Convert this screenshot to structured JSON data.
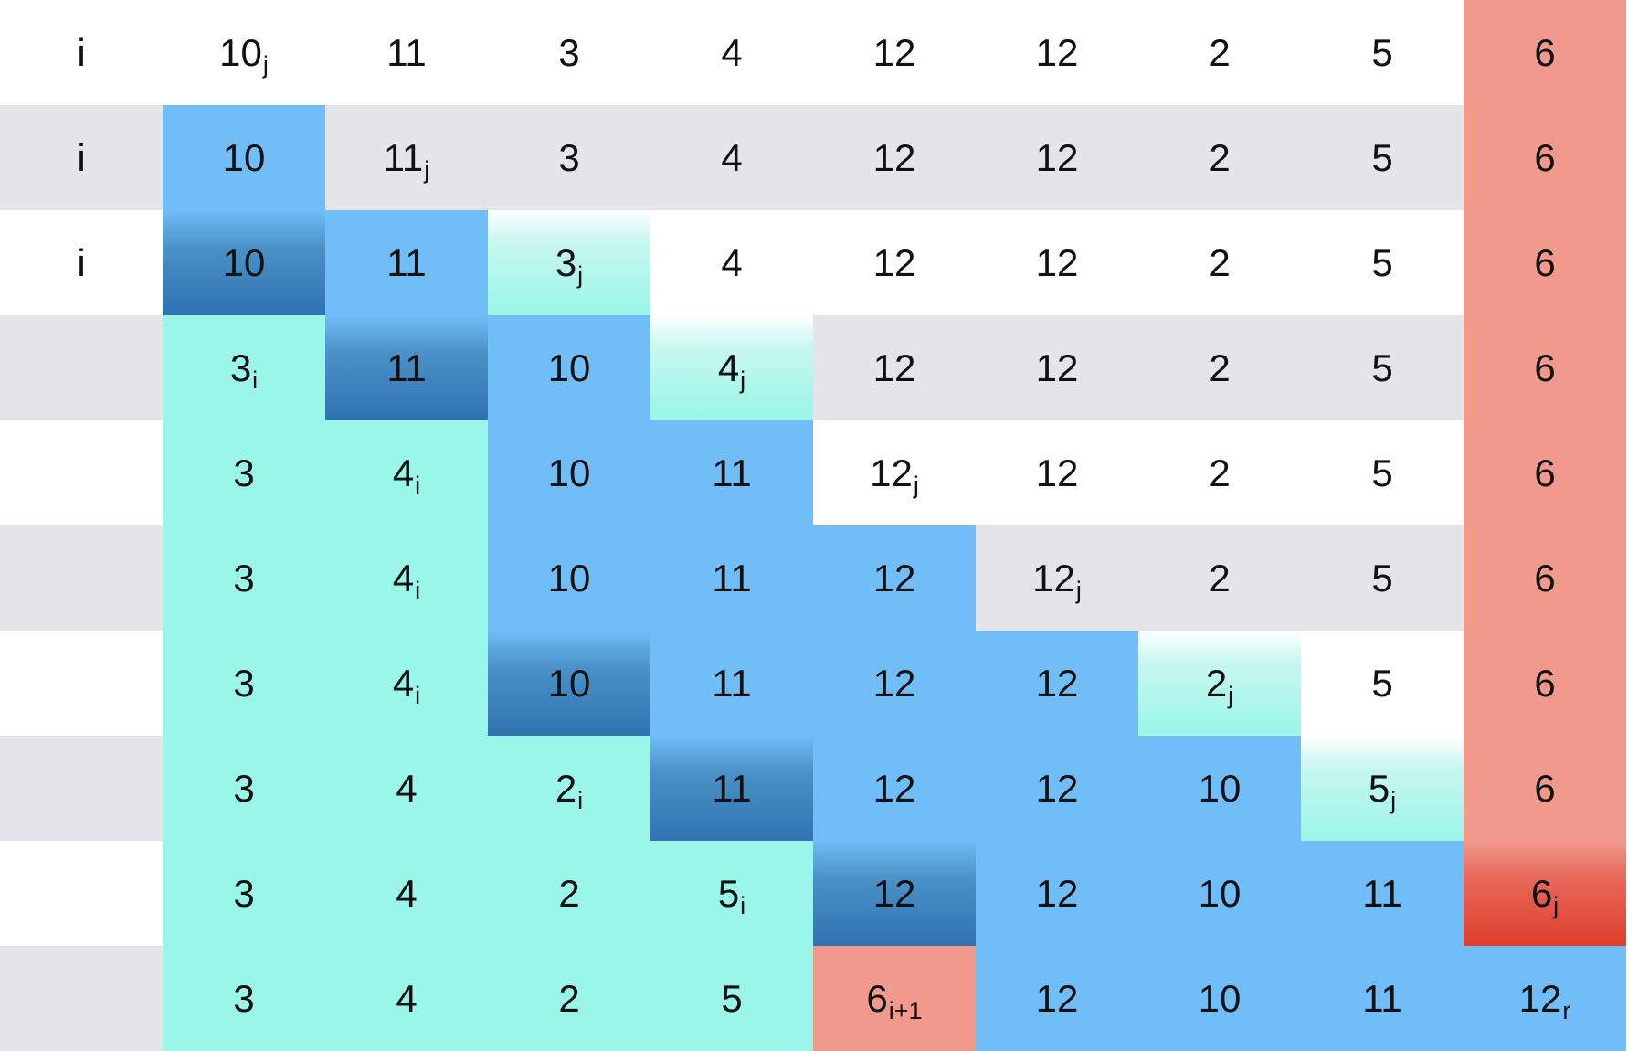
{
  "rows": [
    {
      "marker": "i",
      "cells": [
        {
          "v": "10",
          "s": "j",
          "c": "white"
        },
        {
          "v": "11",
          "s": "",
          "c": "white"
        },
        {
          "v": "3",
          "s": "",
          "c": "white"
        },
        {
          "v": "4",
          "s": "",
          "c": "white"
        },
        {
          "v": "12",
          "s": "",
          "c": "white"
        },
        {
          "v": "12",
          "s": "",
          "c": "white"
        },
        {
          "v": "2",
          "s": "",
          "c": "white"
        },
        {
          "v": "5",
          "s": "",
          "c": "white"
        },
        {
          "v": "6",
          "s": "",
          "c": "red"
        }
      ]
    },
    {
      "marker": "i",
      "cells": [
        {
          "v": "10",
          "s": "",
          "c": "blue"
        },
        {
          "v": "11",
          "s": "j",
          "c": "gray"
        },
        {
          "v": "3",
          "s": "",
          "c": "gray"
        },
        {
          "v": "4",
          "s": "",
          "c": "gray"
        },
        {
          "v": "12",
          "s": "",
          "c": "gray"
        },
        {
          "v": "12",
          "s": "",
          "c": "gray"
        },
        {
          "v": "2",
          "s": "",
          "c": "gray"
        },
        {
          "v": "5",
          "s": "",
          "c": "gray"
        },
        {
          "v": "6",
          "s": "",
          "c": "red"
        }
      ]
    },
    {
      "marker": "i",
      "cells": [
        {
          "v": "10",
          "s": "",
          "c": "darkblue"
        },
        {
          "v": "11",
          "s": "",
          "c": "blue"
        },
        {
          "v": "3",
          "s": "j",
          "c": "mintfade"
        },
        {
          "v": "4",
          "s": "",
          "c": "white"
        },
        {
          "v": "12",
          "s": "",
          "c": "white"
        },
        {
          "v": "12",
          "s": "",
          "c": "white"
        },
        {
          "v": "2",
          "s": "",
          "c": "white"
        },
        {
          "v": "5",
          "s": "",
          "c": "white"
        },
        {
          "v": "6",
          "s": "",
          "c": "red"
        }
      ]
    },
    {
      "marker": "",
      "cells": [
        {
          "v": "3",
          "s": "i",
          "c": "mint"
        },
        {
          "v": "11",
          "s": "",
          "c": "darkblue"
        },
        {
          "v": "10",
          "s": "",
          "c": "blue"
        },
        {
          "v": "4",
          "s": "j",
          "c": "mintfade"
        },
        {
          "v": "12",
          "s": "",
          "c": "gray"
        },
        {
          "v": "12",
          "s": "",
          "c": "gray"
        },
        {
          "v": "2",
          "s": "",
          "c": "gray"
        },
        {
          "v": "5",
          "s": "",
          "c": "gray"
        },
        {
          "v": "6",
          "s": "",
          "c": "red"
        }
      ]
    },
    {
      "marker": "",
      "cells": [
        {
          "v": "3",
          "s": "",
          "c": "mint"
        },
        {
          "v": "4",
          "s": "i",
          "c": "mint"
        },
        {
          "v": "10",
          "s": "",
          "c": "blue"
        },
        {
          "v": "11",
          "s": "",
          "c": "blue"
        },
        {
          "v": "12",
          "s": "j",
          "c": "white"
        },
        {
          "v": "12",
          "s": "",
          "c": "white"
        },
        {
          "v": "2",
          "s": "",
          "c": "white"
        },
        {
          "v": "5",
          "s": "",
          "c": "white"
        },
        {
          "v": "6",
          "s": "",
          "c": "red"
        }
      ]
    },
    {
      "marker": "",
      "cells": [
        {
          "v": "3",
          "s": "",
          "c": "mint"
        },
        {
          "v": "4",
          "s": "i",
          "c": "mint"
        },
        {
          "v": "10",
          "s": "",
          "c": "blue"
        },
        {
          "v": "11",
          "s": "",
          "c": "blue"
        },
        {
          "v": "12",
          "s": "",
          "c": "blue"
        },
        {
          "v": "12",
          "s": "j",
          "c": "gray"
        },
        {
          "v": "2",
          "s": "",
          "c": "gray"
        },
        {
          "v": "5",
          "s": "",
          "c": "gray"
        },
        {
          "v": "6",
          "s": "",
          "c": "red"
        }
      ]
    },
    {
      "marker": "",
      "cells": [
        {
          "v": "3",
          "s": "",
          "c": "mint"
        },
        {
          "v": "4",
          "s": "i",
          "c": "mint"
        },
        {
          "v": "10",
          "s": "",
          "c": "darkblue"
        },
        {
          "v": "11",
          "s": "",
          "c": "blue"
        },
        {
          "v": "12",
          "s": "",
          "c": "blue"
        },
        {
          "v": "12",
          "s": "",
          "c": "blue"
        },
        {
          "v": "2",
          "s": "j",
          "c": "mintfade"
        },
        {
          "v": "5",
          "s": "",
          "c": "white"
        },
        {
          "v": "6",
          "s": "",
          "c": "red"
        }
      ]
    },
    {
      "marker": "",
      "cells": [
        {
          "v": "3",
          "s": "",
          "c": "mint"
        },
        {
          "v": "4",
          "s": "",
          "c": "mint"
        },
        {
          "v": "2",
          "s": "i",
          "c": "mint"
        },
        {
          "v": "11",
          "s": "",
          "c": "darkblue"
        },
        {
          "v": "12",
          "s": "",
          "c": "blue"
        },
        {
          "v": "12",
          "s": "",
          "c": "blue"
        },
        {
          "v": "10",
          "s": "",
          "c": "blue"
        },
        {
          "v": "5",
          "s": "j",
          "c": "mintfade"
        },
        {
          "v": "6",
          "s": "",
          "c": "red"
        }
      ]
    },
    {
      "marker": "",
      "cells": [
        {
          "v": "3",
          "s": "",
          "c": "mint"
        },
        {
          "v": "4",
          "s": "",
          "c": "mint"
        },
        {
          "v": "2",
          "s": "",
          "c": "mint"
        },
        {
          "v": "5",
          "s": "i",
          "c": "mint"
        },
        {
          "v": "12",
          "s": "",
          "c": "darkblue"
        },
        {
          "v": "12",
          "s": "",
          "c": "blue"
        },
        {
          "v": "10",
          "s": "",
          "c": "blue"
        },
        {
          "v": "11",
          "s": "",
          "c": "blue"
        },
        {
          "v": "6",
          "s": "j",
          "c": "redpivot"
        }
      ]
    },
    {
      "marker": "",
      "cells": [
        {
          "v": "3",
          "s": "",
          "c": "mint"
        },
        {
          "v": "4",
          "s": "",
          "c": "mint"
        },
        {
          "v": "2",
          "s": "",
          "c": "mint"
        },
        {
          "v": "5",
          "s": "",
          "c": "mint"
        },
        {
          "v": "6",
          "s": "i+1",
          "c": "red"
        },
        {
          "v": "12",
          "s": "",
          "c": "blue"
        },
        {
          "v": "10",
          "s": "",
          "c": "blue"
        },
        {
          "v": "11",
          "s": "",
          "c": "blue"
        },
        {
          "v": "12",
          "s": "r",
          "c": "blue"
        }
      ]
    }
  ]
}
